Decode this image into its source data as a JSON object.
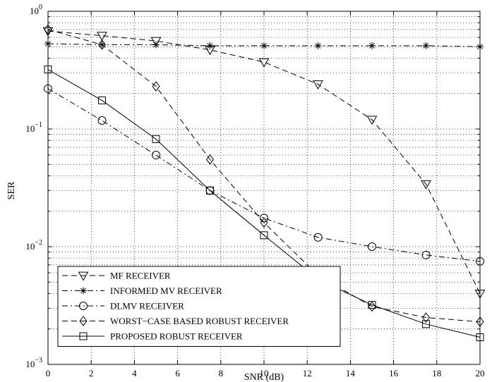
{
  "chart_data": {
    "type": "line",
    "xlabel": "SNR (dB)",
    "ylabel": "SER",
    "xlim": [
      0,
      20
    ],
    "ylim": [
      0.001,
      1
    ],
    "y_scale": "log",
    "grid": true,
    "legend_position": "bottom-left",
    "x_ticks": [
      "0",
      "2",
      "4",
      "6",
      "8",
      "10",
      "12",
      "14",
      "16",
      "18",
      "20"
    ],
    "y_ticks": [
      {
        "base": "10",
        "exp": "0",
        "value": 1
      },
      {
        "base": "10",
        "exp": "−1",
        "value": 0.1
      },
      {
        "base": "10",
        "exp": "−2",
        "value": 0.01
      },
      {
        "base": "10",
        "exp": "−3",
        "value": 0.001
      }
    ],
    "series": [
      {
        "name": "MF RECEIVER",
        "marker": "triangle-down",
        "dash": "dashed",
        "x": [
          0,
          2.5,
          5,
          7.5,
          10,
          12.5,
          15,
          17.5,
          20
        ],
        "y": [
          0.68,
          0.62,
          0.56,
          0.47,
          0.37,
          0.24,
          0.12,
          0.034,
          0.004
        ]
      },
      {
        "name": "INFORMED MV RECEIVER",
        "marker": "asterisk",
        "dash": "dashdot",
        "x": [
          0,
          2.5,
          5,
          7.5,
          10,
          12.5,
          15,
          17.5,
          20
        ],
        "y": [
          0.53,
          0.52,
          0.52,
          0.51,
          0.51,
          0.51,
          0.51,
          0.51,
          0.5
        ]
      },
      {
        "name": "DLMV RECEIVER",
        "marker": "circle",
        "dash": "dashdot",
        "x": [
          0,
          2.5,
          5,
          7.5,
          10,
          12.5,
          15,
          17.5,
          20
        ],
        "y": [
          0.22,
          0.118,
          0.06,
          0.03,
          0.0175,
          0.012,
          0.01,
          0.0085,
          0.0075
        ]
      },
      {
        "name": "WORST−CASE BASED ROBUST RECEIVER",
        "marker": "diamond",
        "dash": "dashed",
        "x": [
          0,
          2.5,
          5,
          7.5,
          10,
          12.5,
          15,
          17.5,
          20
        ],
        "y": [
          0.7,
          0.52,
          0.23,
          0.055,
          0.016,
          0.0057,
          0.0031,
          0.0025,
          0.0023
        ]
      },
      {
        "name": "PROPOSED ROBUST RECEIVER",
        "marker": "square",
        "dash": "solid",
        "x": [
          0,
          2.5,
          5,
          7.5,
          10,
          12.5,
          15,
          17.5,
          20
        ],
        "y": [
          0.32,
          0.175,
          0.082,
          0.03,
          0.0125,
          0.0053,
          0.0032,
          0.0022,
          0.0017
        ]
      }
    ]
  }
}
